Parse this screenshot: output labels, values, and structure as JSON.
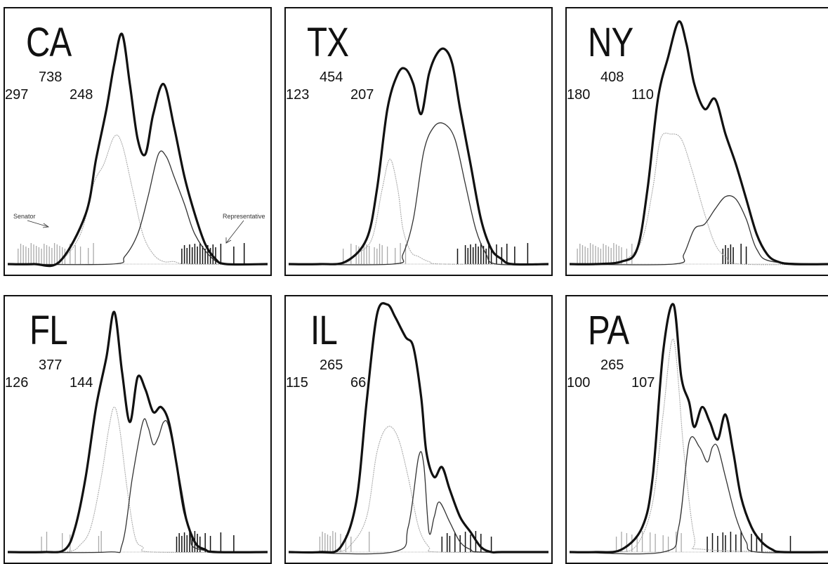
{
  "figure": {
    "colors": {
      "combined": "#111111",
      "representatives": "#333333",
      "senators": "#aaaaaa",
      "rug_senator": "#aaaaaa",
      "rug_representative": "#111111",
      "frame": "#111111"
    },
    "annotations": {
      "senator_label": "Senator",
      "representative_label": "Representative"
    }
  },
  "chart_data": [
    {
      "type": "line",
      "state": "CA",
      "counts": {
        "left": "297",
        "middle": "738",
        "right": "248"
      },
      "xlim": [
        0,
        1
      ],
      "ylim": [
        0,
        1
      ],
      "series": [
        {
          "role": "combined",
          "x": [
            0,
            0.1,
            0.2,
            0.3,
            0.34,
            0.38,
            0.41,
            0.44,
            0.47,
            0.5,
            0.53,
            0.56,
            0.6,
            0.64,
            0.68,
            0.72,
            0.76,
            0.8,
            0.84,
            1.0
          ],
          "y": [
            0,
            0,
            0.01,
            0.2,
            0.42,
            0.62,
            0.8,
            0.92,
            0.72,
            0.5,
            0.44,
            0.6,
            0.72,
            0.55,
            0.35,
            0.2,
            0.08,
            0.02,
            0,
            0
          ]
        },
        {
          "role": "senators",
          "x": [
            0,
            0.12,
            0.2,
            0.28,
            0.33,
            0.37,
            0.41,
            0.44,
            0.48,
            0.52,
            0.56,
            0.6,
            0.64,
            0.7,
            1.0
          ],
          "y": [
            0,
            0,
            0.01,
            0.12,
            0.32,
            0.4,
            0.51,
            0.48,
            0.3,
            0.12,
            0.04,
            0.01,
            0.01,
            0,
            0
          ]
        },
        {
          "role": "representatives",
          "x": [
            0,
            0.4,
            0.45,
            0.5,
            0.54,
            0.58,
            0.61,
            0.64,
            0.68,
            0.72,
            0.78,
            0.84,
            1.0
          ],
          "y": [
            0,
            0,
            0.03,
            0.12,
            0.27,
            0.44,
            0.43,
            0.35,
            0.24,
            0.12,
            0.03,
            0,
            0
          ]
        }
      ],
      "rug_senators": [
        0.04,
        0.05,
        0.06,
        0.07,
        0.08,
        0.09,
        0.1,
        0.11,
        0.12,
        0.13,
        0.14,
        0.15,
        0.16,
        0.17,
        0.18,
        0.19,
        0.2,
        0.21,
        0.22,
        0.24,
        0.26,
        0.28,
        0.31,
        0.33
      ],
      "rug_representatives": [
        0.67,
        0.68,
        0.69,
        0.7,
        0.71,
        0.72,
        0.73,
        0.74,
        0.75,
        0.76,
        0.77,
        0.78,
        0.79,
        0.8,
        0.82,
        0.87,
        0.91
      ]
    },
    {
      "type": "line",
      "state": "TX",
      "counts": {
        "left": "123",
        "middle": "454",
        "right": "207"
      },
      "xlim": [
        0,
        1
      ],
      "ylim": [
        0,
        1
      ],
      "series": [
        {
          "role": "combined",
          "x": [
            0,
            0.12,
            0.22,
            0.3,
            0.34,
            0.38,
            0.42,
            0.45,
            0.48,
            0.51,
            0.54,
            0.57,
            0.6,
            0.63,
            0.66,
            0.7,
            0.74,
            0.78,
            0.82,
            0.86,
            1.0
          ],
          "y": [
            0,
            0,
            0.01,
            0.1,
            0.3,
            0.62,
            0.76,
            0.78,
            0.72,
            0.6,
            0.76,
            0.84,
            0.86,
            0.8,
            0.62,
            0.4,
            0.18,
            0.06,
            0.02,
            0,
            0
          ]
        },
        {
          "role": "senators",
          "x": [
            0,
            0.2,
            0.26,
            0.32,
            0.36,
            0.39,
            0.42,
            0.44,
            0.47,
            0.5,
            0.54,
            0.6,
            1.0
          ],
          "y": [
            0,
            0,
            0.04,
            0.1,
            0.3,
            0.42,
            0.3,
            0.14,
            0.05,
            0.03,
            0.01,
            0,
            0
          ]
        },
        {
          "role": "representatives",
          "x": [
            0,
            0.4,
            0.44,
            0.48,
            0.52,
            0.56,
            0.6,
            0.64,
            0.68,
            0.72,
            0.76,
            0.8,
            1.0
          ],
          "y": [
            0,
            0,
            0.04,
            0.18,
            0.45,
            0.55,
            0.56,
            0.5,
            0.32,
            0.14,
            0.04,
            0,
            0
          ]
        }
      ],
      "rug_senators": [
        0.21,
        0.24,
        0.26,
        0.27,
        0.28,
        0.29,
        0.3,
        0.31,
        0.33,
        0.34,
        0.35,
        0.36,
        0.38,
        0.41,
        0.43,
        0.45
      ],
      "rug_representatives": [
        0.65,
        0.68,
        0.69,
        0.7,
        0.71,
        0.72,
        0.73,
        0.74,
        0.75,
        0.76,
        0.77,
        0.78,
        0.8,
        0.82,
        0.84,
        0.87,
        0.92
      ]
    },
    {
      "type": "line",
      "state": "NY",
      "counts": {
        "left": "180",
        "middle": "408",
        "right": "110"
      },
      "xlim": [
        0,
        1
      ],
      "ylim": [
        0,
        1
      ],
      "series": [
        {
          "role": "combined",
          "x": [
            0,
            0.1,
            0.2,
            0.26,
            0.3,
            0.34,
            0.38,
            0.42,
            0.45,
            0.48,
            0.52,
            0.56,
            0.6,
            0.64,
            0.68,
            0.72,
            0.76,
            0.8,
            0.86,
            1.0
          ],
          "y": [
            0,
            0,
            0.01,
            0.06,
            0.3,
            0.66,
            0.83,
            0.97,
            0.88,
            0.72,
            0.62,
            0.66,
            0.52,
            0.4,
            0.26,
            0.12,
            0.04,
            0.01,
            0,
            0
          ]
        },
        {
          "role": "senators",
          "x": [
            0,
            0.16,
            0.22,
            0.28,
            0.32,
            0.35,
            0.39,
            0.43,
            0.47,
            0.52,
            0.56,
            0.6,
            0.66,
            1.0
          ],
          "y": [
            0,
            0,
            0.02,
            0.1,
            0.3,
            0.5,
            0.52,
            0.5,
            0.38,
            0.2,
            0.08,
            0.03,
            0,
            0
          ]
        },
        {
          "role": "representatives",
          "x": [
            0,
            0.4,
            0.44,
            0.48,
            0.52,
            0.56,
            0.6,
            0.64,
            0.68,
            0.72,
            0.78,
            1.0
          ],
          "y": [
            0,
            0,
            0.04,
            0.14,
            0.16,
            0.22,
            0.27,
            0.26,
            0.18,
            0.06,
            0.01,
            0
          ]
        }
      ],
      "rug_senators": [
        0.03,
        0.04,
        0.05,
        0.06,
        0.07,
        0.08,
        0.09,
        0.1,
        0.11,
        0.12,
        0.13,
        0.14,
        0.15,
        0.16,
        0.17,
        0.18,
        0.19,
        0.2,
        0.22,
        0.24
      ],
      "rug_representatives": [
        0.59,
        0.6,
        0.61,
        0.62,
        0.63,
        0.66,
        0.68
      ]
    },
    {
      "type": "line",
      "state": "FL",
      "counts": {
        "left": "126",
        "middle": "377",
        "right": "144"
      },
      "xlim": [
        0,
        1
      ],
      "ylim": [
        0,
        1
      ],
      "series": [
        {
          "role": "combined",
          "x": [
            0,
            0.14,
            0.22,
            0.26,
            0.3,
            0.34,
            0.38,
            0.41,
            0.44,
            0.47,
            0.5,
            0.53,
            0.56,
            0.59,
            0.62,
            0.65,
            0.68,
            0.72,
            0.76,
            0.8,
            1.0
          ],
          "y": [
            0,
            0,
            0.01,
            0.1,
            0.3,
            0.58,
            0.78,
            0.96,
            0.72,
            0.52,
            0.7,
            0.65,
            0.56,
            0.58,
            0.52,
            0.35,
            0.16,
            0.04,
            0.01,
            0,
            0
          ]
        },
        {
          "role": "senators",
          "x": [
            0,
            0.22,
            0.28,
            0.32,
            0.36,
            0.39,
            0.41,
            0.43,
            0.46,
            0.49,
            0.52,
            0.56,
            1.0
          ],
          "y": [
            0,
            0,
            0.03,
            0.1,
            0.3,
            0.5,
            0.58,
            0.5,
            0.25,
            0.06,
            0.02,
            0,
            0
          ]
        },
        {
          "role": "representatives",
          "x": [
            0,
            0.38,
            0.44,
            0.48,
            0.52,
            0.54,
            0.56,
            0.58,
            0.6,
            0.62,
            0.66,
            0.7,
            0.74,
            1.0
          ],
          "y": [
            0,
            0,
            0.03,
            0.3,
            0.52,
            0.5,
            0.43,
            0.46,
            0.52,
            0.5,
            0.3,
            0.08,
            0.01,
            0
          ]
        }
      ],
      "rug_senators": [
        0.13,
        0.15,
        0.21,
        0.24,
        0.35,
        0.36
      ],
      "rug_representatives": [
        0.65,
        0.66,
        0.67,
        0.68,
        0.69,
        0.7,
        0.71,
        0.72,
        0.73,
        0.74,
        0.76,
        0.78,
        0.82,
        0.87
      ]
    },
    {
      "type": "line",
      "state": "IL",
      "counts": {
        "left": "115",
        "middle": "265",
        "right": "66"
      },
      "xlim": [
        0,
        1
      ],
      "ylim": [
        0,
        1
      ],
      "series": [
        {
          "role": "combined",
          "x": [
            0,
            0.12,
            0.2,
            0.26,
            0.3,
            0.34,
            0.38,
            0.41,
            0.45,
            0.48,
            0.51,
            0.53,
            0.56,
            0.59,
            0.62,
            0.66,
            0.7,
            0.74,
            0.78,
            0.82,
            1.0
          ],
          "y": [
            0,
            0,
            0.02,
            0.2,
            0.6,
            0.95,
            0.99,
            0.94,
            0.86,
            0.82,
            0.62,
            0.4,
            0.3,
            0.34,
            0.25,
            0.14,
            0.08,
            0.02,
            0,
            0,
            0
          ]
        },
        {
          "role": "senators",
          "x": [
            0,
            0.18,
            0.24,
            0.3,
            0.34,
            0.38,
            0.42,
            0.46,
            0.5,
            0.54,
            0.58,
            1.0
          ],
          "y": [
            0,
            0,
            0.03,
            0.14,
            0.4,
            0.5,
            0.46,
            0.3,
            0.1,
            0.02,
            0,
            0
          ]
        },
        {
          "role": "representatives",
          "x": [
            0,
            0.4,
            0.46,
            0.5,
            0.52,
            0.54,
            0.56,
            0.58,
            0.62,
            0.66,
            0.7,
            0.74,
            1.0
          ],
          "y": [
            0,
            0,
            0.1,
            0.38,
            0.35,
            0.08,
            0.14,
            0.2,
            0.12,
            0.04,
            0.01,
            0,
            0
          ]
        }
      ],
      "rug_senators": [
        0.12,
        0.13,
        0.14,
        0.15,
        0.16,
        0.17,
        0.18,
        0.2,
        0.22,
        0.24,
        0.31
      ],
      "rug_representatives": [
        0.59,
        0.61,
        0.62,
        0.64,
        0.66,
        0.68,
        0.7,
        0.72,
        0.74,
        0.78
      ]
    },
    {
      "type": "line",
      "state": "PA",
      "counts": {
        "left": "100",
        "middle": "265",
        "right": "107"
      },
      "xlim": [
        0,
        1
      ],
      "ylim": [
        0,
        1
      ],
      "series": [
        {
          "role": "combined",
          "x": [
            0,
            0.1,
            0.2,
            0.28,
            0.32,
            0.36,
            0.4,
            0.43,
            0.46,
            0.48,
            0.51,
            0.54,
            0.57,
            0.6,
            0.63,
            0.66,
            0.7,
            0.74,
            0.78,
            0.82,
            1.0
          ],
          "y": [
            0,
            0,
            0.01,
            0.1,
            0.3,
            0.8,
            0.99,
            0.7,
            0.6,
            0.5,
            0.58,
            0.52,
            0.45,
            0.55,
            0.4,
            0.22,
            0.1,
            0.04,
            0.01,
            0,
            0
          ]
        },
        {
          "role": "senators",
          "x": [
            0,
            0.18,
            0.26,
            0.32,
            0.36,
            0.4,
            0.44,
            0.48,
            0.52,
            1.0
          ],
          "y": [
            0,
            0,
            0.03,
            0.2,
            0.55,
            0.85,
            0.4,
            0.06,
            0.01,
            0
          ]
        },
        {
          "role": "representatives",
          "x": [
            0,
            0.36,
            0.42,
            0.46,
            0.5,
            0.53,
            0.55,
            0.57,
            0.6,
            0.64,
            0.68,
            0.72,
            1.0
          ],
          "y": [
            0,
            0,
            0.1,
            0.44,
            0.42,
            0.36,
            0.42,
            0.42,
            0.3,
            0.14,
            0.04,
            0,
            0
          ]
        }
      ],
      "rug_senators": [
        0.18,
        0.2,
        0.22,
        0.24,
        0.26,
        0.28,
        0.31,
        0.33,
        0.36,
        0.38,
        0.41,
        0.43
      ],
      "rug_representatives": [
        0.53,
        0.55,
        0.57,
        0.59,
        0.6,
        0.62,
        0.64,
        0.66,
        0.7,
        0.72,
        0.74,
        0.85
      ]
    }
  ]
}
